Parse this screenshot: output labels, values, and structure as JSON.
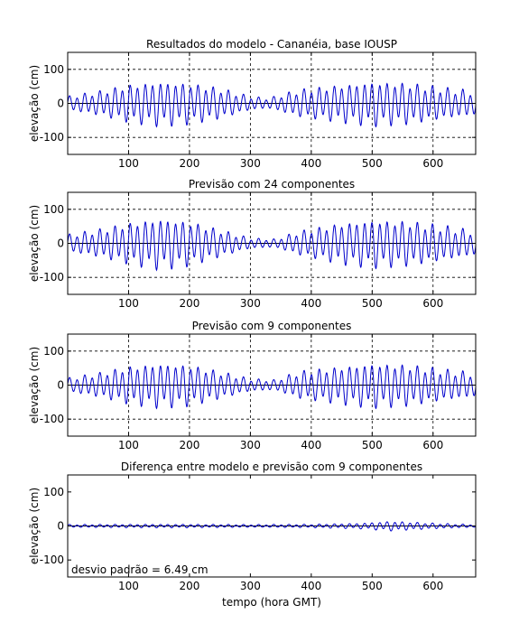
{
  "chart_data": [
    {
      "type": "line",
      "title": "Resultados do modelo - Cananéia, base IOUSP",
      "xlabel": "",
      "ylabel": "elevação (cm)",
      "xlim": [
        0,
        670
      ],
      "ylim": [
        -150,
        150
      ],
      "xticks": [
        100,
        200,
        300,
        400,
        500,
        600
      ],
      "yticks": [
        -100,
        0,
        100
      ],
      "grid": true,
      "annotation": "",
      "series": [
        {
          "color": "#0000cc",
          "envelope": [
            {
              "t": 0,
              "a": 20
            },
            {
              "t": 50,
              "a": 35
            },
            {
              "t": 100,
              "a": 55
            },
            {
              "t": 150,
              "a": 65
            },
            {
              "t": 200,
              "a": 60
            },
            {
              "t": 250,
              "a": 45
            },
            {
              "t": 300,
              "a": 20
            },
            {
              "t": 330,
              "a": 15
            },
            {
              "t": 380,
              "a": 40
            },
            {
              "t": 450,
              "a": 55
            },
            {
              "t": 500,
              "a": 65
            },
            {
              "t": 560,
              "a": 60
            },
            {
              "t": 620,
              "a": 45
            },
            {
              "t": 670,
              "a": 35
            }
          ]
        }
      ]
    },
    {
      "type": "line",
      "title": "Previsão com 24 componentes",
      "xlabel": "",
      "ylabel": "elevação (cm)",
      "xlim": [
        0,
        670
      ],
      "ylim": [
        -150,
        150
      ],
      "xticks": [
        100,
        200,
        300,
        400,
        500,
        600
      ],
      "yticks": [
        -100,
        0,
        100
      ],
      "grid": true,
      "annotation": "",
      "series": [
        {
          "color": "#0000cc",
          "envelope": [
            {
              "t": 0,
              "a": 25
            },
            {
              "t": 50,
              "a": 40
            },
            {
              "t": 100,
              "a": 60
            },
            {
              "t": 150,
              "a": 75
            },
            {
              "t": 200,
              "a": 65
            },
            {
              "t": 250,
              "a": 40
            },
            {
              "t": 300,
              "a": 15
            },
            {
              "t": 340,
              "a": 12
            },
            {
              "t": 380,
              "a": 35
            },
            {
              "t": 450,
              "a": 60
            },
            {
              "t": 500,
              "a": 70
            },
            {
              "t": 560,
              "a": 65
            },
            {
              "t": 620,
              "a": 50
            },
            {
              "t": 670,
              "a": 35
            }
          ]
        }
      ]
    },
    {
      "type": "line",
      "title": "Previsão com 9 componentes",
      "xlabel": "",
      "ylabel": "elevação (cm)",
      "xlim": [
        0,
        670
      ],
      "ylim": [
        -150,
        150
      ],
      "xticks": [
        100,
        200,
        300,
        400,
        500,
        600
      ],
      "yticks": [
        -100,
        0,
        100
      ],
      "grid": true,
      "annotation": "",
      "series": [
        {
          "color": "#0000cc",
          "envelope": [
            {
              "t": 0,
              "a": 20
            },
            {
              "t": 50,
              "a": 35
            },
            {
              "t": 100,
              "a": 55
            },
            {
              "t": 150,
              "a": 65
            },
            {
              "t": 200,
              "a": 60
            },
            {
              "t": 250,
              "a": 40
            },
            {
              "t": 300,
              "a": 18
            },
            {
              "t": 340,
              "a": 15
            },
            {
              "t": 380,
              "a": 40
            },
            {
              "t": 450,
              "a": 55
            },
            {
              "t": 500,
              "a": 65
            },
            {
              "t": 560,
              "a": 60
            },
            {
              "t": 620,
              "a": 45
            },
            {
              "t": 670,
              "a": 35
            }
          ]
        }
      ]
    },
    {
      "type": "line",
      "title": "Diferença entre modelo e previsão com 9 componentes",
      "xlabel": "tempo (hora GMT)",
      "ylabel": "elevação (cm)",
      "xlim": [
        0,
        670
      ],
      "ylim": [
        -150,
        150
      ],
      "xticks": [
        100,
        200,
        300,
        400,
        500,
        600
      ],
      "yticks": [
        -100,
        0,
        100
      ],
      "grid": false,
      "annotation": "desvio padrão = 6.49 cm",
      "series": [
        {
          "color": "#0000cc",
          "envelope": [
            {
              "t": 0,
              "a": 4
            },
            {
              "t": 100,
              "a": 5
            },
            {
              "t": 200,
              "a": 5
            },
            {
              "t": 300,
              "a": 4
            },
            {
              "t": 400,
              "a": 5
            },
            {
              "t": 480,
              "a": 8
            },
            {
              "t": 530,
              "a": 14
            },
            {
              "t": 580,
              "a": 10
            },
            {
              "t": 630,
              "a": 6
            },
            {
              "t": 670,
              "a": 4
            }
          ]
        }
      ]
    }
  ]
}
